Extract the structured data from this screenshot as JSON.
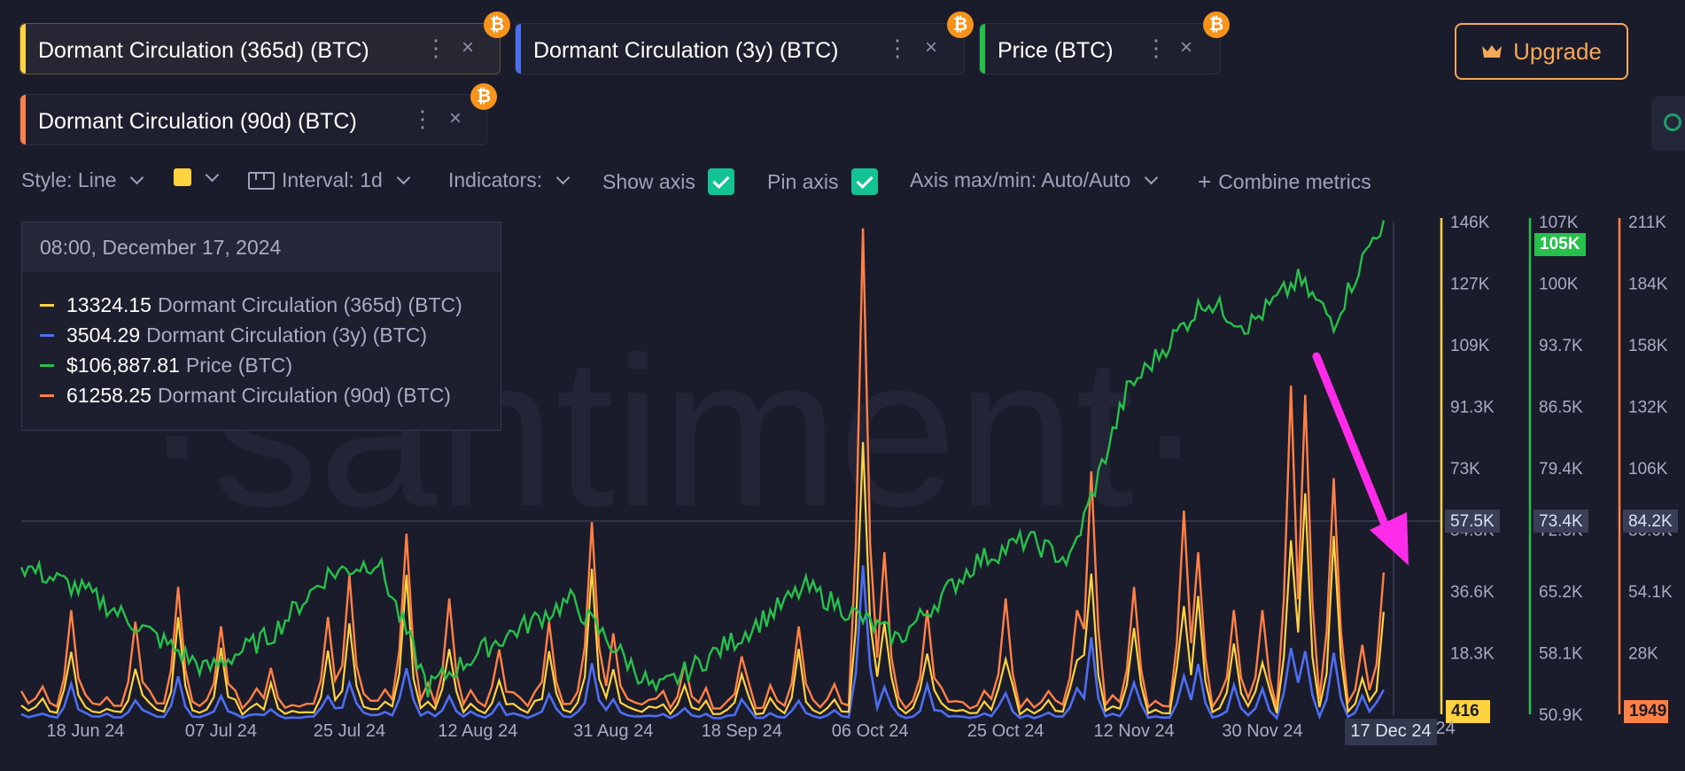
{
  "metrics": [
    {
      "label": "Dormant Circulation (365d) (BTC)",
      "color": "#ffd33f",
      "active": true
    },
    {
      "label": "Dormant Circulation (3y) (BTC)",
      "color": "#4e6ef2",
      "active": false
    },
    {
      "label": "Price (BTC)",
      "color": "#26c04b",
      "active": false
    },
    {
      "label": "Dormant Circulation (90d) (BTC)",
      "color": "#ff8046",
      "active": false
    }
  ],
  "icons": {
    "badge": "bitcoin-icon",
    "menu": "more-vertical-icon",
    "close": "close-icon",
    "upgrade": "crown-icon",
    "side": "circle-indicator-icon"
  },
  "badge_symbol": "₿",
  "menu_symbol": "⋮",
  "close_symbol": "×",
  "upgrade": {
    "label": "Upgrade",
    "color": "#f3a85a"
  },
  "toolbar": {
    "style_label": "Style: Line",
    "interval_label": "Interval: 1d",
    "indicators_label": "Indicators:",
    "show_axis_label": "Show axis",
    "show_axis_checked": true,
    "pin_axis_label": "Pin axis",
    "pin_axis_checked": true,
    "axis_maxmin_label": "Axis max/min: Auto/Auto",
    "combine_label": "Combine metrics",
    "combine_symbol": "+"
  },
  "tooltip": {
    "date": "08:00, December 17, 2024",
    "rows": [
      {
        "value": "13324.15",
        "name": "Dormant Circulation (365d) (BTC)",
        "color": "#ffd33f"
      },
      {
        "value": "3504.29",
        "name": "Dormant Circulation (3y) (BTC)",
        "color": "#4e6ef2"
      },
      {
        "value": "$106,887.81",
        "name": "Price (BTC)",
        "color": "#26c04b"
      },
      {
        "value": "61258.25",
        "name": "Dormant Circulation (90d) (BTC)",
        "color": "#ff8046"
      }
    ]
  },
  "watermark": "·santiment·",
  "chart_data": {
    "type": "line",
    "x_tick_labels": [
      "18 Jun 24",
      "07 Jul 24",
      "25 Jul 24",
      "12 Aug 24",
      "31 Aug 24",
      "18 Sep 24",
      "06 Oct 24",
      "25 Oct 24",
      "12 Nov 24",
      "30 Nov 24",
      "17 Dec 24"
    ],
    "hidden_tick_fragment": "c 24",
    "axes": [
      {
        "id": "dormant-365d",
        "color": "#ffd33f",
        "ticks": [
          "146K",
          "127K",
          "109K",
          "91.3K",
          "73K",
          "54.8K",
          "36.6K",
          "18.3K"
        ],
        "current_label": "416",
        "hover_label": "57.5K"
      },
      {
        "id": "price",
        "color": "#26c04b",
        "ticks": [
          "107K",
          "100K",
          "93.7K",
          "86.5K",
          "79.4K",
          "72.3K",
          "65.2K",
          "58.1K",
          "50.9K"
        ],
        "current_label": "105K",
        "hover_label": "73.4K"
      },
      {
        "id": "dormant-90d",
        "color": "#ff8046",
        "ticks": [
          "211K",
          "184K",
          "158K",
          "132K",
          "106K",
          "80.0K",
          "54.1K",
          "28K"
        ],
        "current_label": "1949",
        "hover_label": "84.2K"
      }
    ],
    "dormant_90d_peaks": [
      {
        "date": "12 Jun 24",
        "value": 12000
      },
      {
        "date": "16 Jun 24",
        "value": 45000
      },
      {
        "date": "25 Jun 24",
        "value": 40000
      },
      {
        "date": "01 Jul 24",
        "value": 55000
      },
      {
        "date": "07 Jul 24",
        "value": 38000
      },
      {
        "date": "14 Jul 24",
        "value": 20000
      },
      {
        "date": "22 Jul 24",
        "value": 42000
      },
      {
        "date": "25 Jul 24",
        "value": 60000
      },
      {
        "date": "02 Aug 24",
        "value": 78000
      },
      {
        "date": "08 Aug 24",
        "value": 50000
      },
      {
        "date": "15 Aug 24",
        "value": 28000
      },
      {
        "date": "22 Aug 24",
        "value": 40000
      },
      {
        "date": "28 Aug 24",
        "value": 83000
      },
      {
        "date": "31 Aug 24",
        "value": 35000
      },
      {
        "date": "10 Sep 24",
        "value": 22000
      },
      {
        "date": "18 Sep 24",
        "value": 25000
      },
      {
        "date": "26 Sep 24",
        "value": 38000
      },
      {
        "date": "05 Oct 24",
        "value": 210000
      },
      {
        "date": "08 Oct 24",
        "value": 70000
      },
      {
        "date": "14 Oct 24",
        "value": 45000
      },
      {
        "date": "25 Oct 24",
        "value": 50000
      },
      {
        "date": "04 Nov 24",
        "value": 45000
      },
      {
        "date": "06 Nov 24",
        "value": 105000
      },
      {
        "date": "12 Nov 24",
        "value": 55000
      },
      {
        "date": "19 Nov 24",
        "value": 88000
      },
      {
        "date": "21 Nov 24",
        "value": 70000
      },
      {
        "date": "26 Nov 24",
        "value": 45000
      },
      {
        "date": "30 Nov 24",
        "value": 45000
      },
      {
        "date": "04 Dec 24",
        "value": 142000
      },
      {
        "date": "06 Dec 24",
        "value": 138000
      },
      {
        "date": "10 Dec 24",
        "value": 102000
      },
      {
        "date": "14 Dec 24",
        "value": 30000
      },
      {
        "date": "17 Dec 24",
        "value": 61258.25
      }
    ],
    "hover_date": "17 Dec 24",
    "grid": false
  },
  "annotation": {
    "type": "arrow",
    "color": "#ff2bea"
  }
}
